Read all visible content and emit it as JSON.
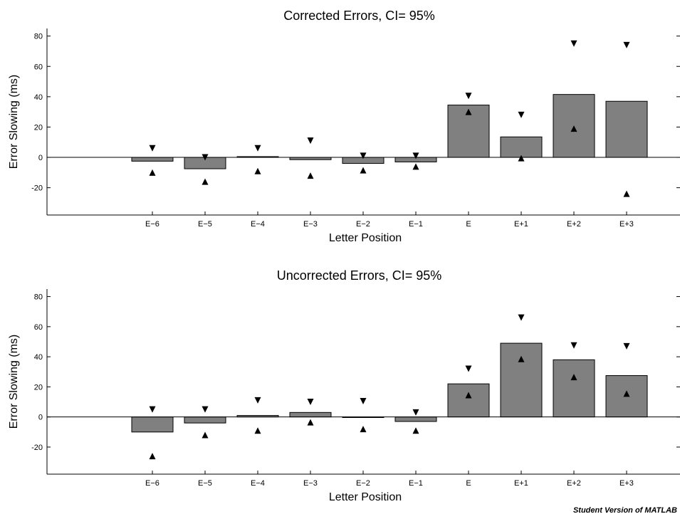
{
  "watermark": "Student Version of MATLAB",
  "chart_data": [
    {
      "type": "bar",
      "title": "Corrected Errors, CI= 95%",
      "xlabel": "Letter Position",
      "ylabel": "Error Slowing (ms)",
      "categories": [
        "E−6",
        "E−5",
        "E−4",
        "E−3",
        "E−2",
        "E−1",
        "E",
        "E+1",
        "E+2",
        "E+3"
      ],
      "ylim": [
        -38,
        85
      ],
      "yticks": [
        -20,
        0,
        20,
        40,
        60,
        80
      ],
      "values": [
        -2.5,
        -7.5,
        0.5,
        -1.5,
        -4,
        -3,
        34.5,
        13.5,
        41.5,
        37
      ],
      "ci_upper": [
        6,
        0,
        6,
        11,
        1,
        1,
        40.5,
        28,
        75,
        74
      ],
      "ci_lower": [
        -10,
        -16,
        -9,
        -12,
        -8.5,
        -6,
        30,
        -0.5,
        19,
        -24
      ],
      "bar_color": "#808080"
    },
    {
      "type": "bar",
      "title": "Uncorrected Errors, CI= 95%",
      "xlabel": "Letter Position",
      "ylabel": "Error Slowing (ms)",
      "categories": [
        "E−6",
        "E−5",
        "E−4",
        "E−3",
        "E−2",
        "E−1",
        "E",
        "E+1",
        "E+2",
        "E+3"
      ],
      "ylim": [
        -38,
        85
      ],
      "yticks": [
        -20,
        0,
        20,
        40,
        60,
        80
      ],
      "values": [
        -10,
        -4,
        1,
        3,
        0,
        -3,
        22,
        49,
        38,
        27.5
      ],
      "ci_upper": [
        5,
        5,
        11,
        10,
        10.5,
        3,
        32,
        66,
        47.5,
        47
      ],
      "ci_lower": [
        -26,
        -12,
        -9,
        -3.5,
        -8,
        -9,
        14.5,
        38.5,
        26.5,
        15.5
      ],
      "bar_color": "#808080"
    }
  ]
}
